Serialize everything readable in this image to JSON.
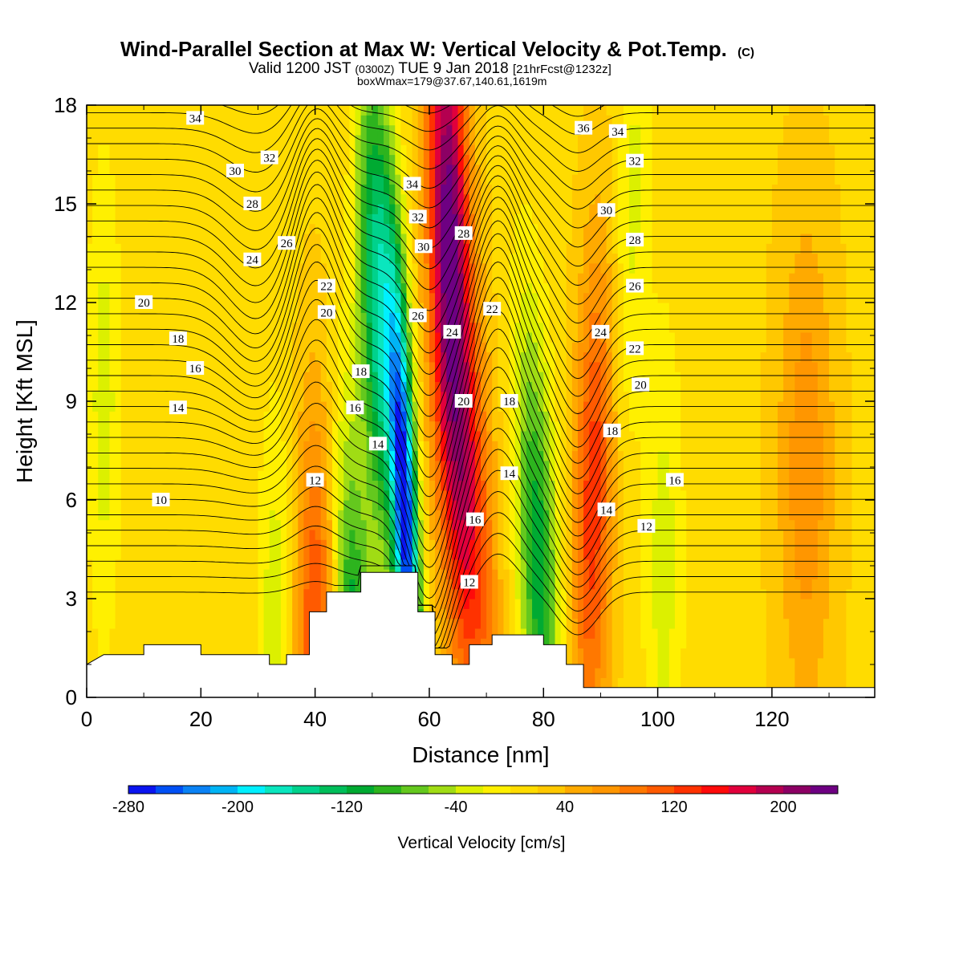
{
  "chart_data": {
    "type": "heatmap",
    "title": "Wind-Parallel Section at Max W: Vertical Velocity & Pot.Temp.",
    "title_mark": "(C)",
    "subtitle": {
      "valid_prefix": "Valid 1200 JST",
      "utc": "(0300Z)",
      "date": "TUE 9 Jan 2018",
      "forecast": "[21hrFcst@1232z]"
    },
    "note": "boxWmax=179@37.67,140.61,1619m",
    "xlabel": "Distance [nm]",
    "ylabel": "Height [Kft MSL]",
    "xlim": [
      0,
      138
    ],
    "ylim": [
      0,
      18
    ],
    "xticks": [
      0,
      20,
      40,
      60,
      80,
      100,
      120
    ],
    "yticks": [
      0,
      3,
      6,
      9,
      12,
      15,
      18
    ],
    "colorbar": {
      "label": "Vertical Velocity [cm/s]",
      "min": -280,
      "max": 240,
      "step": 20,
      "tick_values": [
        -280,
        -200,
        -120,
        -40,
        40,
        120,
        200
      ],
      "tick_labels": [
        "-280",
        "-200",
        "-120",
        "-40",
        "40",
        "120",
        "200"
      ],
      "colors": [
        "#0a14f0",
        "#0050f5",
        "#0a82f5",
        "#00b4f5",
        "#00f0ff",
        "#0ae6be",
        "#00d28c",
        "#00be5a",
        "#00aa32",
        "#2db41e",
        "#64c81e",
        "#a0dc14",
        "#dcf000",
        "#fff000",
        "#ffdc00",
        "#ffc800",
        "#ffaa00",
        "#ff9600",
        "#ff7800",
        "#ff5a00",
        "#ff3200",
        "#ff0a0a",
        "#e1003c",
        "#b40050",
        "#8c0064",
        "#6e0082"
      ]
    },
    "terrain": [
      [
        0,
        1.0
      ],
      [
        3,
        1.3
      ],
      [
        10,
        1.3
      ],
      [
        10,
        1.6
      ],
      [
        20,
        1.6
      ],
      [
        20,
        1.3
      ],
      [
        32,
        1.3
      ],
      [
        32,
        1.0
      ],
      [
        35,
        1.0
      ],
      [
        35,
        1.3
      ],
      [
        39,
        1.3
      ],
      [
        39,
        2.6
      ],
      [
        42,
        2.6
      ],
      [
        42,
        3.2
      ],
      [
        48,
        3.2
      ],
      [
        48,
        3.8
      ],
      [
        58,
        3.8
      ],
      [
        58,
        2.6
      ],
      [
        61,
        2.6
      ],
      [
        61,
        1.3
      ],
      [
        64,
        1.3
      ],
      [
        64,
        1.0
      ],
      [
        67,
        1.0
      ],
      [
        67,
        1.6
      ],
      [
        71,
        1.6
      ],
      [
        71,
        1.9
      ],
      [
        80,
        1.9
      ],
      [
        80,
        1.6
      ],
      [
        84,
        1.6
      ],
      [
        84,
        1.0
      ],
      [
        87,
        1.0
      ],
      [
        87,
        0.3
      ],
      [
        138,
        0.3
      ]
    ],
    "velocity_field": {
      "background": 15,
      "features": [
        {
          "x": 40,
          "y": 1.5,
          "x_top": 40,
          "width": 3.5,
          "w": 110
        },
        {
          "x": 33,
          "y": 1.5,
          "x_top": 33,
          "width": 3,
          "w": -50
        },
        {
          "x": 3,
          "y": 9,
          "x_top": 3,
          "width": 3,
          "w": -45
        },
        {
          "x": 47,
          "y": 1,
          "x_top": 44,
          "width": 3.2,
          "w": -130
        },
        {
          "x": 57,
          "y": 5.5,
          "x_top": 53,
          "width": 2.2,
          "w": -280
        },
        {
          "x": 53,
          "y": 12,
          "x_top": 50,
          "width": 3.2,
          "w": -170
        },
        {
          "x": 68,
          "y": 6,
          "x_top": 63,
          "width": 4.5,
          "w": 140
        },
        {
          "x": 65,
          "y": 15,
          "x_top": 63,
          "width": 3.5,
          "w": 190
        },
        {
          "x": 80,
          "y": 4,
          "x_top": 76,
          "width": 3.5,
          "w": -130
        },
        {
          "x": 88,
          "y": 6,
          "x_top": 90,
          "width": 3.5,
          "w": 120
        },
        {
          "x": 93,
          "y": 15,
          "x_top": 96,
          "width": 3,
          "w": -40
        },
        {
          "x": 101,
          "y": 4,
          "x_top": 101,
          "width": 3.5,
          "w": -45
        },
        {
          "x": 126,
          "y": 7,
          "x_top": 126,
          "width": 5,
          "w": 60
        }
      ]
    },
    "theta_contour_labels": [
      {
        "x": 19,
        "y": 17.6,
        "v": "34"
      },
      {
        "x": 32,
        "y": 16.4,
        "v": "32"
      },
      {
        "x": 26,
        "y": 16.0,
        "v": "30"
      },
      {
        "x": 29,
        "y": 15.0,
        "v": "28"
      },
      {
        "x": 35,
        "y": 13.8,
        "v": "26"
      },
      {
        "x": 29,
        "y": 13.3,
        "v": "24"
      },
      {
        "x": 42,
        "y": 12.5,
        "v": "22"
      },
      {
        "x": 42,
        "y": 11.7,
        "v": "20"
      },
      {
        "x": 10,
        "y": 12.0,
        "v": "20"
      },
      {
        "x": 16,
        "y": 10.9,
        "v": "18"
      },
      {
        "x": 19,
        "y": 10.0,
        "v": "16"
      },
      {
        "x": 16,
        "y": 8.8,
        "v": "14"
      },
      {
        "x": 13,
        "y": 6.0,
        "v": "10"
      },
      {
        "x": 40,
        "y": 6.6,
        "v": "12"
      },
      {
        "x": 48,
        "y": 9.9,
        "v": "18"
      },
      {
        "x": 47,
        "y": 8.8,
        "v": "16"
      },
      {
        "x": 51,
        "y": 7.7,
        "v": "14"
      },
      {
        "x": 57,
        "y": 15.6,
        "v": "34"
      },
      {
        "x": 58,
        "y": 14.6,
        "v": "32"
      },
      {
        "x": 59,
        "y": 13.7,
        "v": "30"
      },
      {
        "x": 66,
        "y": 14.1,
        "v": "28"
      },
      {
        "x": 58,
        "y": 11.6,
        "v": "26"
      },
      {
        "x": 64,
        "y": 11.1,
        "v": "24"
      },
      {
        "x": 71,
        "y": 11.8,
        "v": "22"
      },
      {
        "x": 66,
        "y": 9.0,
        "v": "20"
      },
      {
        "x": 74,
        "y": 9.0,
        "v": "18"
      },
      {
        "x": 74,
        "y": 6.8,
        "v": "14"
      },
      {
        "x": 68,
        "y": 5.4,
        "v": "16"
      },
      {
        "x": 67,
        "y": 3.5,
        "v": "12"
      },
      {
        "x": 87,
        "y": 17.3,
        "v": "36"
      },
      {
        "x": 93,
        "y": 17.2,
        "v": "34"
      },
      {
        "x": 96,
        "y": 16.3,
        "v": "32"
      },
      {
        "x": 91,
        "y": 14.8,
        "v": "30"
      },
      {
        "x": 96,
        "y": 13.9,
        "v": "28"
      },
      {
        "x": 96,
        "y": 12.5,
        "v": "26"
      },
      {
        "x": 90,
        "y": 11.1,
        "v": "24"
      },
      {
        "x": 96,
        "y": 10.6,
        "v": "22"
      },
      {
        "x": 97,
        "y": 9.5,
        "v": "20"
      },
      {
        "x": 92,
        "y": 8.1,
        "v": "18"
      },
      {
        "x": 103,
        "y": 6.6,
        "v": "16"
      },
      {
        "x": 91,
        "y": 5.7,
        "v": "14"
      },
      {
        "x": 98,
        "y": 5.2,
        "v": "12"
      }
    ]
  }
}
